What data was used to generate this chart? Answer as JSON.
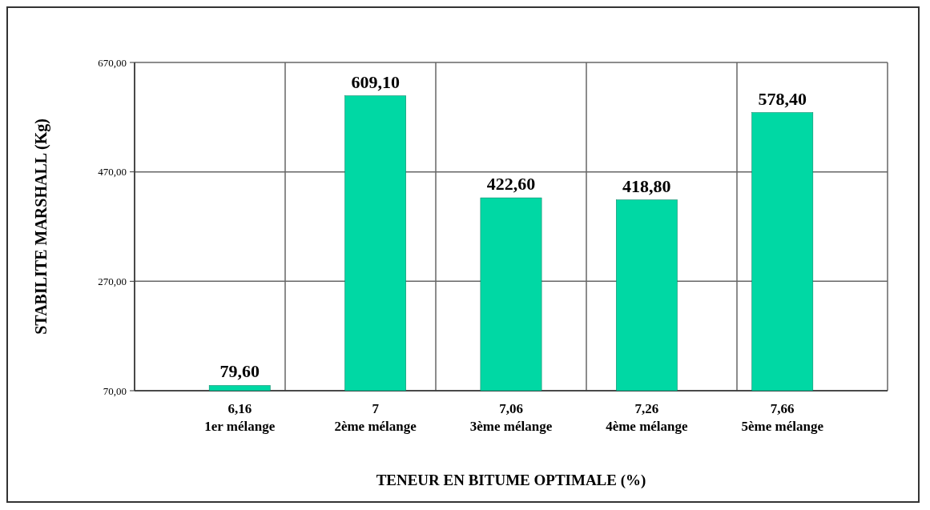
{
  "chart_data": {
    "type": "bar",
    "xlabel": "TENEUR EN BITUME OPTIMALE (%)",
    "ylabel": "STABILITE MARSHALL (Kg)",
    "categories": [
      "6,16\n1er mélange",
      "7\n2ème mélange",
      "7,06\n3ème mélange",
      "7,26\n4ème mélange",
      "7,66\n5ème mélange"
    ],
    "values": [
      79.6,
      609.1,
      422.6,
      418.8,
      578.4
    ],
    "value_labels": [
      "79,60",
      "609,10",
      "422,60",
      "418,80",
      "578,40"
    ],
    "color": "#00d8a4",
    "ylim": [
      70,
      670
    ],
    "yticks": [
      {
        "value": 70,
        "label": "70,00"
      },
      {
        "value": 270,
        "label": "270,00"
      },
      {
        "value": 470,
        "label": "470,00"
      },
      {
        "value": 670,
        "label": "670,00"
      }
    ],
    "grid": true
  }
}
